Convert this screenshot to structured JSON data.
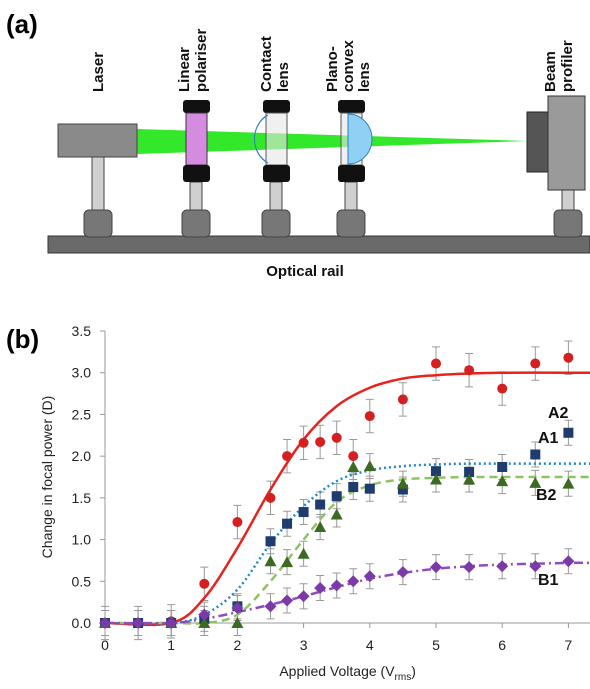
{
  "panel_a": {
    "label": "(a)",
    "components": [
      {
        "lines": [
          "Laser"
        ]
      },
      {
        "lines": [
          "Linear",
          "polariser"
        ]
      },
      {
        "lines": [
          "Contact",
          "lens"
        ]
      },
      {
        "lines": [
          "Plano-",
          "convex",
          "lens"
        ]
      },
      {
        "lines": [
          "Beam",
          "profiler"
        ]
      }
    ],
    "rail": "Optical rail"
  },
  "chart_data": {
    "type": "scatter",
    "panel_label": "(b)",
    "y_label": "Change in focal power (D)",
    "x_label": [
      "Applied Voltage (V",
      "rms",
      ")"
    ],
    "xlim": [
      0,
      7.33
    ],
    "ylim": [
      0,
      3.5
    ],
    "xticks": [
      0,
      1,
      2,
      3,
      4,
      5,
      6,
      7
    ],
    "yticks": [
      {
        "value": 0,
        "label": "0.0"
      },
      0.5,
      {
        "value": 1,
        "label": "1.0"
      },
      1.5,
      {
        "value": 2,
        "label": "2.0"
      },
      2.5,
      {
        "value": 3,
        "label": "3.0"
      },
      3.5
    ],
    "x": [
      0,
      0.5,
      1,
      1.5,
      2,
      2.5,
      2.75,
      3,
      3.25,
      3.5,
      3.75,
      4,
      4.5,
      5,
      5.5,
      6,
      6.5,
      7
    ],
    "fit_x": [
      0,
      1,
      1.5,
      2,
      2.5,
      3,
      3.5,
      4,
      4.5,
      5,
      5.5,
      6,
      7,
      7.33
    ],
    "series": [
      {
        "name": "A2",
        "color": "#d42020",
        "marker": "circle",
        "values": [
          0,
          0,
          0.02,
          0.47,
          1.21,
          1.5,
          2.0,
          2.16,
          2.17,
          2.22,
          2.0,
          2.48,
          2.68,
          3.11,
          3.03,
          2.81,
          3.11,
          3.18
        ],
        "errors": [
          0.2,
          0.2,
          0.2,
          0.2,
          0.2,
          0.2,
          0.2,
          0.2,
          0.2,
          0.2,
          0.2,
          0.2,
          0.2,
          0.2,
          0.2,
          0.2,
          0.2,
          0.2
        ],
        "fit": {
          "color": "#e8231e",
          "dash": "solid",
          "values": [
            0,
            0,
            0.3,
            0.9,
            1.6,
            2.2,
            2.6,
            2.82,
            2.93,
            2.97,
            2.99,
            3.0,
            3.0,
            3.0
          ]
        }
      },
      {
        "name": "A1",
        "color": "#1f3c6e",
        "marker": "square",
        "values": [
          0,
          0,
          0,
          0.05,
          0.2,
          0.98,
          1.19,
          1.33,
          1.42,
          1.52,
          1.63,
          1.61,
          1.6,
          1.82,
          1.81,
          1.87,
          2.02,
          2.28
        ],
        "errors": [
          0.15,
          0.15,
          0.15,
          0.15,
          0.15,
          0.15,
          0.15,
          0.15,
          0.15,
          0.15,
          0.15,
          0.15,
          0.15,
          0.15,
          0.15,
          0.15,
          0.15,
          0.15
        ],
        "fit": {
          "color": "#1e88c8",
          "dash": "dotted",
          "values": [
            0,
            0,
            0.1,
            0.4,
            0.95,
            1.4,
            1.7,
            1.83,
            1.88,
            1.9,
            1.91,
            1.91,
            1.91,
            1.91
          ]
        }
      },
      {
        "name": "B2",
        "color": "#3d6a22",
        "marker": "triangle",
        "values": [
          0,
          null,
          0,
          0,
          0,
          0.74,
          0.73,
          0.83,
          1.15,
          1.3,
          1.87,
          1.88,
          1.67,
          1.72,
          1.72,
          1.7,
          1.68,
          1.67
        ],
        "errors": [
          0.15,
          null,
          0.15,
          0.15,
          0.15,
          0.15,
          0.15,
          0.15,
          0.15,
          0.15,
          0.15,
          0.15,
          0.15,
          0.15,
          0.15,
          0.15,
          0.15,
          0.15
        ],
        "fit": {
          "color": "#8fc265",
          "dash": "dashed",
          "values": [
            0,
            0,
            0,
            0.1,
            0.5,
            1.0,
            1.45,
            1.65,
            1.72,
            1.74,
            1.75,
            1.75,
            1.75,
            1.75
          ]
        }
      },
      {
        "name": "B1",
        "color": "#7a3aa8",
        "marker": "diamond",
        "values": [
          0,
          0,
          0,
          0.1,
          0.18,
          0.2,
          0.27,
          0.32,
          0.42,
          0.45,
          0.5,
          0.56,
          0.61,
          0.67,
          0.67,
          0.68,
          0.68,
          0.74
        ],
        "errors": [
          0.15,
          0.15,
          0.15,
          0.15,
          0.15,
          0.15,
          0.15,
          0.15,
          0.15,
          0.15,
          0.15,
          0.15,
          0.15,
          0.15,
          0.15,
          0.15,
          0.15,
          0.15
        ],
        "fit": {
          "color": "#8e4cc0",
          "dash": "dashdot",
          "values": [
            0,
            0,
            0.05,
            0.13,
            0.22,
            0.32,
            0.43,
            0.53,
            0.6,
            0.65,
            0.68,
            0.7,
            0.72,
            0.72
          ]
        }
      }
    ]
  }
}
